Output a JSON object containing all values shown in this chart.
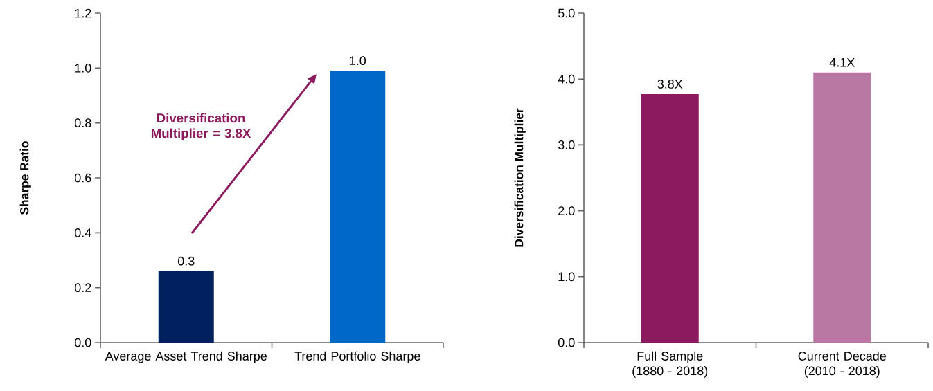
{
  "chart_data": [
    {
      "type": "bar",
      "ylabel": "Sharpe Ratio",
      "categories": [
        "Average Asset Trend Sharpe",
        "Trend Portfolio Sharpe"
      ],
      "values": [
        0.26,
        0.99
      ],
      "colors": [
        "#002060",
        "#0068c8"
      ],
      "value_labels": [
        "0.3",
        "1.0"
      ],
      "ylim": [
        0,
        1.2
      ],
      "yticks": [
        {
          "value": 0,
          "label": "0.0"
        },
        {
          "value": 0.2,
          "label": "0.2"
        },
        {
          "value": 0.4,
          "label": "0.4"
        },
        {
          "value": 0.6,
          "label": "0.6"
        },
        {
          "value": 0.8,
          "label": "0.8"
        },
        {
          "value": 1.0,
          "label": "1.0"
        },
        {
          "value": 1.2,
          "label": "1.2"
        }
      ],
      "annotations": [
        "Diversification Multiplier = 3.8X"
      ]
    },
    {
      "type": "bar",
      "ylabel": "Diversification Multiplier",
      "categories": [
        "Full Sample (1880 - 2018)",
        "Current Decade (2010 - 2018)"
      ],
      "values": [
        3.77,
        4.1
      ],
      "colors": [
        "#8b1a5e",
        "#b878a3"
      ],
      "value_labels": [
        "3.8X",
        "4.1X"
      ],
      "ylim": [
        0,
        5
      ],
      "yticks": [
        {
          "value": 0,
          "label": "0.0"
        },
        {
          "value": 1,
          "label": "1.0"
        },
        {
          "value": 2,
          "label": "2.0"
        },
        {
          "value": 3,
          "label": "3.0"
        },
        {
          "value": 4,
          "label": "4.0"
        },
        {
          "value": 5,
          "label": "5.0"
        }
      ]
    }
  ]
}
